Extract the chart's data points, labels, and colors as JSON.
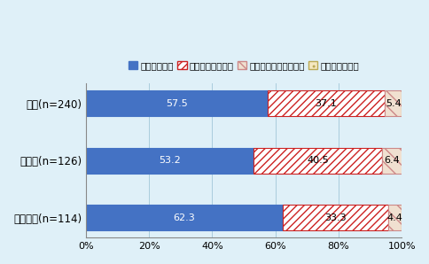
{
  "categories": [
    "全体(n=240)",
    "製造業(n=126)",
    "非製造業(n=114)"
  ],
  "series": [
    {
      "label": "期待している",
      "values": [
        57.5,
        53.2,
        62.3
      ],
      "color": "#4472C4",
      "hatch": "",
      "edgecolor": "#4472C4",
      "text_color": "white"
    },
    {
      "label": "やや期待している",
      "values": [
        37.1,
        40.5,
        33.3
      ],
      "color": "#FFFFFF",
      "hatch": "////",
      "edgecolor": "#CC2222",
      "text_color": "black"
    },
    {
      "label": "あまり期待していない",
      "values": [
        5.4,
        6.4,
        4.4
      ],
      "color": "#F0E0D0",
      "hatch": "\\\\",
      "edgecolor": "#CC8888",
      "text_color": "black"
    },
    {
      "label": "期待していない",
      "values": [
        0.0,
        0.0,
        0.0
      ],
      "color": "#F5E8C0",
      "hatch": "..",
      "edgecolor": "#BBAA55",
      "text_color": "black"
    }
  ],
  "xlim": [
    0,
    100
  ],
  "xticks": [
    0,
    20,
    40,
    60,
    80,
    100
  ],
  "xticklabels": [
    "0%",
    "20%",
    "40%",
    "60%",
    "80%",
    "100%"
  ],
  "background_color": "#DFF0F8",
  "bar_height": 0.45,
  "legend_fontsize": 7.5,
  "label_fontsize": 8,
  "ytick_fontsize": 8.5,
  "xtick_fontsize": 8
}
